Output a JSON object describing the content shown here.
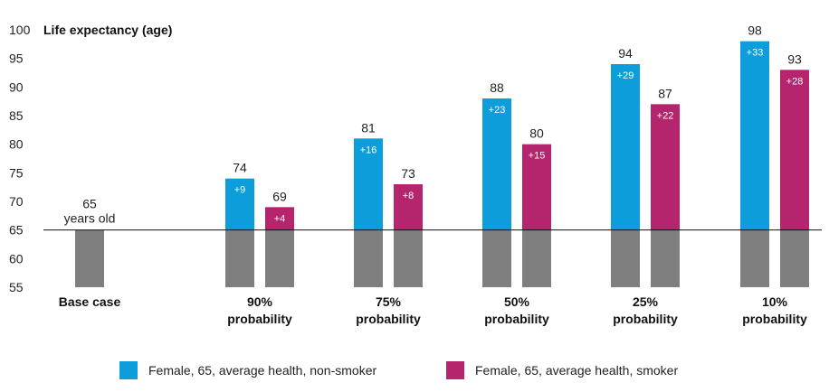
{
  "chart_data": {
    "type": "bar",
    "title": "Life expectancy (age)",
    "ylim": [
      55,
      100
    ],
    "yticks": [
      55,
      60,
      65,
      70,
      75,
      80,
      85,
      90,
      95,
      100
    ],
    "baseline": 65,
    "base_case": {
      "label": "Base case",
      "value": 65,
      "value_label": "65",
      "sublabel": "years old"
    },
    "categories": [
      [
        "90%",
        "probability"
      ],
      [
        "75%",
        "probability"
      ],
      [
        "50%",
        "probability"
      ],
      [
        "25%",
        "probability"
      ],
      [
        "10%",
        "probability"
      ]
    ],
    "series": [
      {
        "name": "Female, 65, average health, non-smoker",
        "color": "#0d9ddb",
        "values": [
          74,
          81,
          88,
          94,
          98
        ],
        "deltas": [
          "+9",
          "+16",
          "+23",
          "+29",
          "+33"
        ]
      },
      {
        "name": "Female, 65, average health, smoker",
        "color": "#b5256e",
        "values": [
          69,
          73,
          80,
          87,
          93
        ],
        "deltas": [
          "+4",
          "+8",
          "+15",
          "+22",
          "+28"
        ]
      }
    ],
    "below_baseline_color": "#7f7f7f"
  }
}
